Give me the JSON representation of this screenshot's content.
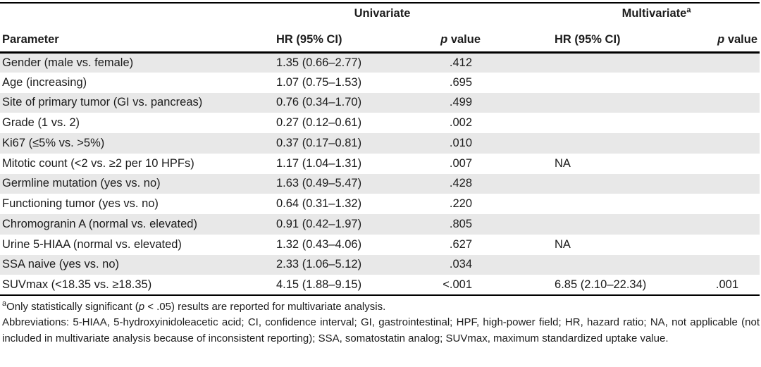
{
  "table": {
    "group_headers": {
      "univariate": {
        "label": "Univariate",
        "sup": ""
      },
      "multivariate": {
        "label": "Multivariate",
        "sup": "a"
      }
    },
    "column_headers": {
      "parameter": "Parameter",
      "uni_hr": "HR (95% CI)",
      "multi_hr": "HR (95% CI)",
      "p_italic": "p",
      "p_rest": " value"
    },
    "rows": [
      {
        "parameter": "Gender (male vs. female)",
        "uni_hr": "1.35 (0.66–2.77)",
        "uni_p": ".412",
        "multi_hr": "",
        "multi_p": ""
      },
      {
        "parameter": "Age (increasing)",
        "uni_hr": "1.07 (0.75–1.53)",
        "uni_p": ".695",
        "multi_hr": "",
        "multi_p": ""
      },
      {
        "parameter": "Site of primary tumor (GI vs. pancreas)",
        "uni_hr": "0.76 (0.34–1.70)",
        "uni_p": ".499",
        "multi_hr": "",
        "multi_p": ""
      },
      {
        "parameter": "Grade (1 vs. 2)",
        "uni_hr": "0.27 (0.12–0.61)",
        "uni_p": ".002",
        "multi_hr": "",
        "multi_p": ""
      },
      {
        "parameter": "Ki67 (≤5% vs. >5%)",
        "uni_hr": "0.37 (0.17–0.81)",
        "uni_p": ".010",
        "multi_hr": "",
        "multi_p": ""
      },
      {
        "parameter": "Mitotic count (<2 vs. ≥2 per 10 HPFs)",
        "uni_hr": "1.17 (1.04–1.31)",
        "uni_p": ".007",
        "multi_hr": "NA",
        "multi_p": ""
      },
      {
        "parameter": "Germline mutation (yes vs. no)",
        "uni_hr": "1.63 (0.49–5.47)",
        "uni_p": ".428",
        "multi_hr": "",
        "multi_p": ""
      },
      {
        "parameter": "Functioning tumor (yes vs. no)",
        "uni_hr": "0.64 (0.31–1.32)",
        "uni_p": ".220",
        "multi_hr": "",
        "multi_p": ""
      },
      {
        "parameter": "Chromogranin A (normal vs. elevated)",
        "uni_hr": "0.91 (0.42–1.97)",
        "uni_p": ".805",
        "multi_hr": "",
        "multi_p": ""
      },
      {
        "parameter": "Urine 5-HIAA (normal vs. elevated)",
        "uni_hr": "1.32 (0.43–4.06)",
        "uni_p": ".627",
        "multi_hr": "NA",
        "multi_p": ""
      },
      {
        "parameter": "SSA naive (yes vs. no)",
        "uni_hr": "2.33 (1.06–5.12)",
        "uni_p": ".034",
        "multi_hr": "",
        "multi_p": ""
      },
      {
        "parameter": "SUVmax (<18.35 vs. ≥18.35)",
        "uni_hr": "4.15 (1.88–9.15)",
        "uni_p": "<.001",
        "multi_hr": "6.85 (2.10–22.34)",
        "multi_p": ".001"
      }
    ],
    "footnotes": {
      "significance": {
        "sup": "a",
        "pre": "Only statistically significant (",
        "p_italic": "p",
        "post": " < .05) results are reported for multivariate analysis."
      },
      "abbreviations": "Abbreviations: 5-HIAA, 5-hydroxyinidoleacetic acid; CI, confidence interval; GI, gastrointestinal; HPF, high-power field; HR, hazard ratio; NA, not applicable (not included in multivariate analysis because of inconsistent reporting); SSA, somatostatin analog; SUVmax, maximum standardized uptake value."
    }
  }
}
